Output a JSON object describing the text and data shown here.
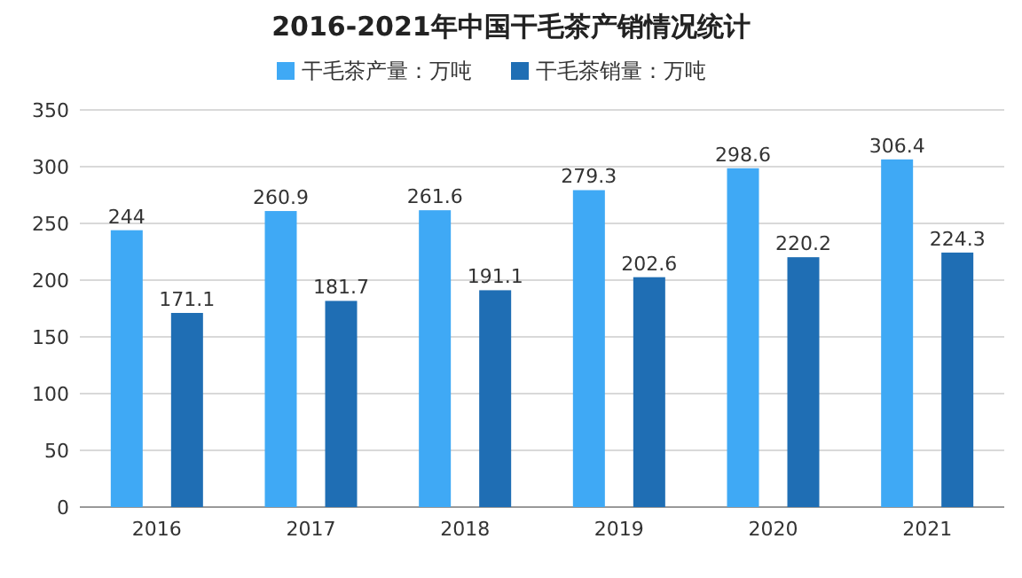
{
  "chart_data": {
    "type": "bar",
    "title": "2016-2021年中国干毛茶产销情况统计",
    "categories": [
      "2016",
      "2017",
      "2018",
      "2019",
      "2020",
      "2021"
    ],
    "series": [
      {
        "name": "干毛茶产量：万吨",
        "color": "#3fa9f5",
        "values": [
          244,
          260.9,
          261.6,
          279.3,
          298.6,
          306.4
        ]
      },
      {
        "name": "干毛茶销量：万吨",
        "color": "#1f6eb4",
        "values": [
          171.1,
          181.7,
          191.1,
          202.6,
          220.2,
          224.3
        ]
      }
    ],
    "ylim": [
      0,
      350
    ],
    "yticks": [
      0,
      50,
      100,
      150,
      200,
      250,
      300,
      350
    ],
    "grid": "y",
    "legend": "top",
    "data_labels": true
  }
}
